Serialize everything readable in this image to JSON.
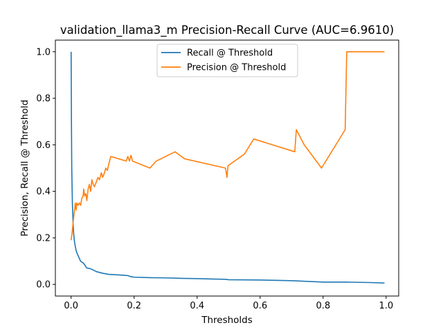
{
  "chart_data": {
    "type": "line",
    "title": "validation_llama3_m Precision-Recall Curve (AUC=6.9610)",
    "xlabel": "Thresholds",
    "ylabel": "Precision, Recall @ Threshold",
    "xlim": [
      -0.05,
      1.04
    ],
    "ylim": [
      -0.05,
      1.05
    ],
    "xticks": [
      0.0,
      0.2,
      0.4,
      0.6,
      0.8,
      1.0
    ],
    "xtick_labels": [
      "0.0",
      "0.2",
      "0.4",
      "0.6",
      "0.8",
      "1.0"
    ],
    "yticks": [
      0.0,
      0.2,
      0.4,
      0.6,
      0.8,
      1.0
    ],
    "ytick_labels": [
      "0.0",
      "0.2",
      "0.4",
      "0.6",
      "0.8",
      "1.0"
    ],
    "grid": false,
    "legend_position": "top-center",
    "series": [
      {
        "name": "Recall @ Threshold",
        "color": "#1f77b4",
        "points": [
          [
            0.0,
            1.0
          ],
          [
            0.001,
            0.7
          ],
          [
            0.002,
            0.5
          ],
          [
            0.004,
            0.35
          ],
          [
            0.006,
            0.27
          ],
          [
            0.008,
            0.22
          ],
          [
            0.01,
            0.19
          ],
          [
            0.013,
            0.165
          ],
          [
            0.016,
            0.145
          ],
          [
            0.02,
            0.13
          ],
          [
            0.025,
            0.115
          ],
          [
            0.03,
            0.1
          ],
          [
            0.04,
            0.09
          ],
          [
            0.05,
            0.07
          ],
          [
            0.06,
            0.068
          ],
          [
            0.07,
            0.062
          ],
          [
            0.08,
            0.055
          ],
          [
            0.1,
            0.048
          ],
          [
            0.12,
            0.043
          ],
          [
            0.15,
            0.041
          ],
          [
            0.18,
            0.038
          ],
          [
            0.19,
            0.033
          ],
          [
            0.2,
            0.031
          ],
          [
            0.25,
            0.029
          ],
          [
            0.3,
            0.028
          ],
          [
            0.35,
            0.026
          ],
          [
            0.4,
            0.025
          ],
          [
            0.45,
            0.023
          ],
          [
            0.49,
            0.022
          ],
          [
            0.5,
            0.02
          ],
          [
            0.6,
            0.019
          ],
          [
            0.7,
            0.016
          ],
          [
            0.75,
            0.013
          ],
          [
            0.8,
            0.01
          ],
          [
            0.87,
            0.01
          ],
          [
            0.95,
            0.008
          ],
          [
            0.995,
            0.006
          ]
        ]
      },
      {
        "name": "Precision @ Threshold",
        "color": "#ff7f0e",
        "points": [
          [
            0.0,
            0.19
          ],
          [
            0.003,
            0.22
          ],
          [
            0.006,
            0.26
          ],
          [
            0.009,
            0.3
          ],
          [
            0.012,
            0.33
          ],
          [
            0.013,
            0.35
          ],
          [
            0.016,
            0.32
          ],
          [
            0.018,
            0.35
          ],
          [
            0.022,
            0.34
          ],
          [
            0.026,
            0.35
          ],
          [
            0.03,
            0.34
          ],
          [
            0.034,
            0.37
          ],
          [
            0.038,
            0.38
          ],
          [
            0.04,
            0.41
          ],
          [
            0.043,
            0.38
          ],
          [
            0.047,
            0.39
          ],
          [
            0.05,
            0.36
          ],
          [
            0.054,
            0.41
          ],
          [
            0.058,
            0.43
          ],
          [
            0.062,
            0.4
          ],
          [
            0.066,
            0.45
          ],
          [
            0.07,
            0.43
          ],
          [
            0.074,
            0.42
          ],
          [
            0.08,
            0.44
          ],
          [
            0.085,
            0.46
          ],
          [
            0.09,
            0.45
          ],
          [
            0.096,
            0.48
          ],
          [
            0.1,
            0.46
          ],
          [
            0.106,
            0.48
          ],
          [
            0.11,
            0.5
          ],
          [
            0.115,
            0.49
          ],
          [
            0.12,
            0.52
          ],
          [
            0.126,
            0.55
          ],
          [
            0.175,
            0.53
          ],
          [
            0.18,
            0.55
          ],
          [
            0.185,
            0.53
          ],
          [
            0.19,
            0.555
          ],
          [
            0.195,
            0.53
          ],
          [
            0.25,
            0.5
          ],
          [
            0.27,
            0.53
          ],
          [
            0.33,
            0.57
          ],
          [
            0.36,
            0.54
          ],
          [
            0.49,
            0.5
          ],
          [
            0.495,
            0.46
          ],
          [
            0.498,
            0.51
          ],
          [
            0.55,
            0.56
          ],
          [
            0.58,
            0.625
          ],
          [
            0.71,
            0.57
          ],
          [
            0.715,
            0.665
          ],
          [
            0.74,
            0.6
          ],
          [
            0.795,
            0.5
          ],
          [
            0.87,
            0.665
          ],
          [
            0.875,
            1.0
          ],
          [
            0.995,
            1.0
          ]
        ]
      }
    ]
  }
}
